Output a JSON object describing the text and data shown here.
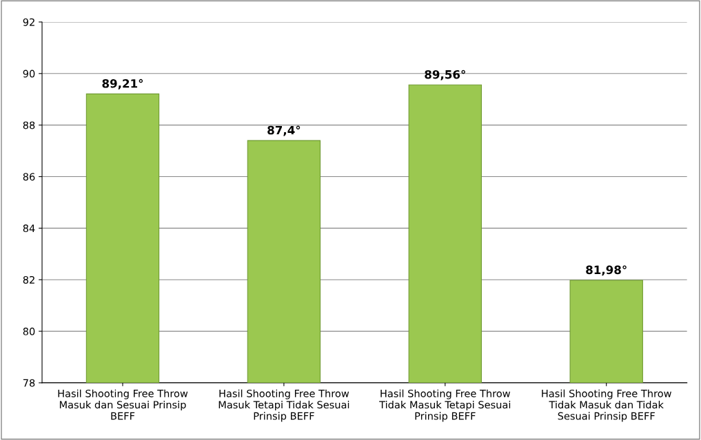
{
  "chart_data": {
    "type": "bar",
    "categories": [
      "Hasil Shooting Free Throw\nMasuk dan Sesuai Prinsip\nBEFF",
      "Hasil Shooting Free Throw\nMasuk Tetapi Tidak Sesuai\nPrinsip BEFF",
      "Hasil Shooting Free Throw\nTidak Masuk Tetapi Sesuai\nPrinsip BEFF",
      "Hasil Shooting Free Throw\nTidak Masuk dan Tidak\nSesuai Prinsip BEFF"
    ],
    "values": [
      89.21,
      87.4,
      89.56,
      81.98
    ],
    "value_labels": [
      "89,21°",
      "87,4°",
      "89,56°",
      "81,98°"
    ],
    "color": "#9bc850",
    "ylim": [
      78,
      92
    ],
    "yticks": [
      78,
      80,
      82,
      84,
      86,
      88,
      90,
      92
    ],
    "grid": "y",
    "legend": false
  }
}
